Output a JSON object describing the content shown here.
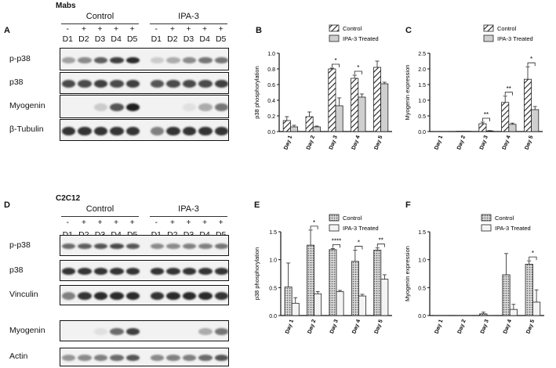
{
  "panels": {
    "A": {
      "letter": "A",
      "title": "Mabs",
      "group_labels": [
        "Control",
        "IPA-3"
      ],
      "treatment": [
        "-",
        "+",
        "+",
        "+",
        "+",
        "-",
        "+",
        "+",
        "+",
        "+"
      ],
      "days": [
        "D1",
        "D2",
        "D3",
        "D4",
        "D5",
        "D1",
        "D2",
        "D3",
        "D4",
        "D5"
      ],
      "rows": [
        {
          "label": "p-p38",
          "int": [
            0.35,
            0.45,
            0.65,
            0.8,
            0.9,
            0.15,
            0.3,
            0.45,
            0.55,
            0.55
          ]
        },
        {
          "label": "p38",
          "int": [
            0.75,
            0.75,
            0.8,
            0.75,
            0.8,
            0.7,
            0.75,
            0.75,
            0.75,
            0.8
          ]
        },
        {
          "label": "Myogenin",
          "int": [
            0,
            0,
            0.15,
            0.7,
            0.95,
            0,
            0,
            0.05,
            0.3,
            0.55
          ]
        },
        {
          "label": "β-Tubulin",
          "int": [
            0.85,
            0.85,
            0.85,
            0.85,
            0.85,
            0.5,
            0.85,
            0.85,
            0.85,
            0.85
          ]
        }
      ]
    },
    "D": {
      "letter": "D",
      "title": "C2C12",
      "group_labels": [
        "Control",
        "IPA-3"
      ],
      "treatment": [
        "-",
        "+",
        "+",
        "+",
        "+",
        "-",
        "+",
        "+",
        "+",
        "+"
      ],
      "days": [
        "D1",
        "D2",
        "D3",
        "D4",
        "D5",
        "D1",
        "D2",
        "D3",
        "D4",
        "D5"
      ],
      "rows": [
        {
          "label": "p-p38",
          "int": [
            0.6,
            0.65,
            0.7,
            0.75,
            0.7,
            0.45,
            0.45,
            0.5,
            0.5,
            0.55
          ]
        },
        {
          "label": "p38",
          "int": [
            0.85,
            0.85,
            0.85,
            0.85,
            0.85,
            0.85,
            0.85,
            0.85,
            0.85,
            0.85
          ]
        },
        {
          "label": "Vinculin",
          "int": [
            0.5,
            0.85,
            0.9,
            0.9,
            0.9,
            0.85,
            0.9,
            0.9,
            0.9,
            0.85
          ]
        },
        {
          "label": "Myogenin",
          "int": [
            0,
            0,
            0.05,
            0.6,
            0.8,
            0,
            0,
            0,
            0.3,
            0.55
          ]
        },
        {
          "label": "Actin",
          "int": [
            0.4,
            0.45,
            0.5,
            0.6,
            0.7,
            0.45,
            0.5,
            0.5,
            0.6,
            0.7
          ]
        }
      ]
    },
    "B": {
      "letter": "B"
    },
    "C": {
      "letter": "C"
    },
    "E": {
      "letter": "E"
    },
    "F": {
      "letter": "F"
    }
  },
  "chart_data": [
    {
      "id": "B",
      "type": "bar",
      "ylabel": "p38 phosphorylation",
      "ylim": [
        0,
        1.0
      ],
      "yticks": [
        "0.0",
        "0.2",
        "0.4",
        "0.6",
        "0.8",
        "1.0"
      ],
      "categories": [
        "Day 1",
        "Day 2",
        "Day 3",
        "Day 4",
        "Day 5"
      ],
      "series": [
        {
          "name": "Control",
          "values": [
            0.14,
            0.19,
            0.8,
            0.68,
            0.82
          ],
          "err": [
            0.05,
            0.06,
            0.01,
            0.04,
            0.08
          ]
        },
        {
          "name": "IPA-3 Treated",
          "values": [
            0.06,
            0.06,
            0.33,
            0.44,
            0.61
          ],
          "err": [
            0.02,
            0.01,
            0.1,
            0.04,
            0.02
          ]
        }
      ],
      "sig": [
        {
          "day": 3,
          "label": "*"
        },
        {
          "day": 4,
          "label": "*"
        }
      ],
      "legend": "top-right",
      "style": "hatched"
    },
    {
      "id": "C",
      "type": "bar",
      "ylabel": "Myogenin expression",
      "ylim": [
        0,
        2.5
      ],
      "yticks": [
        "0.0",
        "0.5",
        "1.0",
        "1.5",
        "2.0",
        "2.5"
      ],
      "categories": [
        "Day 1",
        "Day 2",
        "Day 3",
        "Day 4",
        "Day 5"
      ],
      "series": [
        {
          "name": "Control",
          "values": [
            0.0,
            0.01,
            0.25,
            0.93,
            1.67
          ],
          "err": [
            0,
            0,
            0.05,
            0.2,
            0.4
          ]
        },
        {
          "name": "IPA-3 Treated",
          "values": [
            0.0,
            0.01,
            0.02,
            0.23,
            0.7
          ],
          "err": [
            0,
            0,
            0.01,
            0.04,
            0.1
          ]
        }
      ],
      "sig": [
        {
          "day": 3,
          "label": "**"
        },
        {
          "day": 4,
          "label": "**"
        },
        {
          "day": 5,
          "label": "*"
        }
      ],
      "legend": "top-right",
      "style": "hatched"
    },
    {
      "id": "E",
      "type": "bar",
      "ylabel": "p38 phosphorylation",
      "ylim": [
        0,
        1.5
      ],
      "yticks": [
        "0.0",
        "0.5",
        "1.0",
        "1.5"
      ],
      "categories": [
        "Day 1",
        "Day 2",
        "Day 3",
        "Day 4",
        "Day 5"
      ],
      "series": [
        {
          "name": "Control",
          "values": [
            0.51,
            1.26,
            1.18,
            0.97,
            1.17
          ],
          "err": [
            0.43,
            0.27,
            0.02,
            0.2,
            0.04
          ]
        },
        {
          "name": "IPA-3 Treated",
          "values": [
            0.22,
            0.39,
            0.43,
            0.35,
            0.65
          ],
          "err": [
            0.1,
            0.04,
            0.02,
            0.03,
            0.08
          ]
        }
      ],
      "sig": [
        {
          "day": 2,
          "label": "*"
        },
        {
          "day": 3,
          "label": "****"
        },
        {
          "day": 4,
          "label": "*"
        },
        {
          "day": 5,
          "label": "**"
        }
      ],
      "legend": "top-right",
      "style": "dotted"
    },
    {
      "id": "F",
      "type": "bar",
      "ylabel": "Myogenin expression",
      "ylim": [
        0,
        1.5
      ],
      "yticks": [
        "0.0",
        "0.5",
        "1.0",
        "1.5"
      ],
      "categories": [
        "Day 1",
        "Day 2",
        "Day 3",
        "Day 4",
        "Day 5"
      ],
      "series": [
        {
          "name": "Control",
          "values": [
            0.0,
            0.0,
            0.03,
            0.73,
            0.92
          ],
          "err": [
            0,
            0,
            0.03,
            0.38,
            0.06
          ]
        },
        {
          "name": "IPA-3 Treated",
          "values": [
            0.0,
            0.0,
            0.0,
            0.11,
            0.24
          ],
          "err": [
            0,
            0,
            0,
            0.09,
            0.22
          ]
        }
      ],
      "sig": [
        {
          "day": 5,
          "label": "*"
        }
      ],
      "legend": "top-right",
      "style": "dotted"
    }
  ]
}
